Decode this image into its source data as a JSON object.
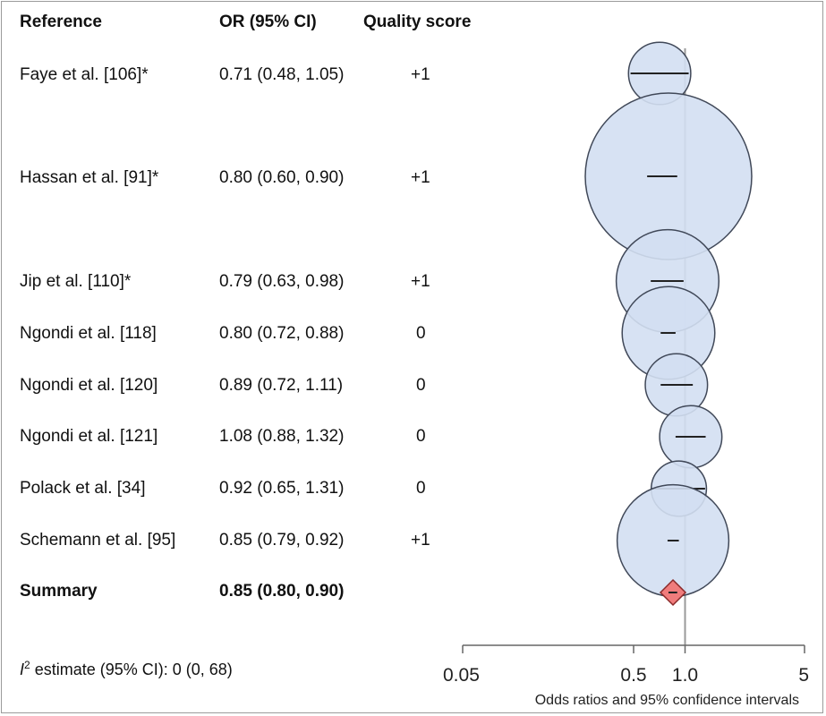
{
  "headers": {
    "reference": "Reference",
    "or_ci": "OR (95% CI)",
    "quality": "Quality score"
  },
  "rows": [
    {
      "reference": "Faye et al. [106]*",
      "or_ci": "0.71 (0.48, 1.05)",
      "quality": "+1"
    },
    {
      "reference": "Hassan et al. [91]*",
      "or_ci": "0.80 (0.60, 0.90)",
      "quality": "+1"
    },
    {
      "reference": "Jip et al. [110]*",
      "or_ci": "0.79 (0.63, 0.98)",
      "quality": "+1"
    },
    {
      "reference": "Ngondi et al. [118]",
      "or_ci": "0.80 (0.72, 0.88)",
      "quality": "0"
    },
    {
      "reference": "Ngondi et al. [120]",
      "or_ci": "0.89 (0.72, 1.11)",
      "quality": "0"
    },
    {
      "reference": "Ngondi et al. [121]",
      "or_ci": "1.08 (0.88, 1.32)",
      "quality": "0"
    },
    {
      "reference": "Polack et al. [34]",
      "or_ci": "0.92 (0.65, 1.31)",
      "quality": "0"
    },
    {
      "reference": "Schemann et al. [95]",
      "or_ci": "0.85 (0.79, 0.92)",
      "quality": "+1"
    }
  ],
  "summary": {
    "reference": "Summary",
    "or_ci": "0.85 (0.80, 0.90)"
  },
  "footnote": {
    "i_symbol": "I",
    "superscript": "2",
    "text": " estimate (95% CI): 0 (0, 68)"
  },
  "colors": {
    "bubble_fill": "#d3dff2",
    "bubble_stroke": "#404858",
    "diamond_fill": "#f07c7c",
    "diamond_stroke": "#8a2a2a",
    "reference_line": "#9a9a9a"
  },
  "chart_data": {
    "type": "scatter",
    "subtype": "forest-plot",
    "x_scale": "log",
    "xlabel": "Odds ratios and 95% confidence intervals",
    "xlim": [
      0.05,
      5
    ],
    "x_ticks": [
      0.05,
      0.5,
      1.0,
      5
    ],
    "x_tick_labels": [
      "0.05",
      "0.5",
      "1.0",
      "5"
    ],
    "reference_line": 1.0,
    "series": [
      {
        "study": "Faye et al. [106]*",
        "or": 0.71,
        "lower": 0.48,
        "upper": 1.05,
        "relative_weight": 0.14
      },
      {
        "study": "Hassan et al. [91]*",
        "or": 0.8,
        "lower": 0.6,
        "upper": 0.9,
        "relative_weight": 1.0
      },
      {
        "study": "Jip et al. [110]*",
        "or": 0.79,
        "lower": 0.63,
        "upper": 0.98,
        "relative_weight": 0.38
      },
      {
        "study": "Ngondi et al. [118]",
        "or": 0.8,
        "lower": 0.72,
        "upper": 0.88,
        "relative_weight": 0.31
      },
      {
        "study": "Ngondi et al. [120]",
        "or": 0.89,
        "lower": 0.72,
        "upper": 1.11,
        "relative_weight": 0.14
      },
      {
        "study": "Ngondi et al. [121]",
        "or": 1.08,
        "lower": 0.88,
        "upper": 1.32,
        "relative_weight": 0.14
      },
      {
        "study": "Polack et al. [34]",
        "or": 0.92,
        "lower": 0.65,
        "upper": 1.31,
        "relative_weight": 0.11
      },
      {
        "study": "Schemann et al. [95]",
        "or": 0.85,
        "lower": 0.79,
        "upper": 0.92,
        "relative_weight": 0.45
      }
    ],
    "summary": {
      "label": "Summary",
      "or": 0.85,
      "lower": 0.8,
      "upper": 0.9
    }
  }
}
